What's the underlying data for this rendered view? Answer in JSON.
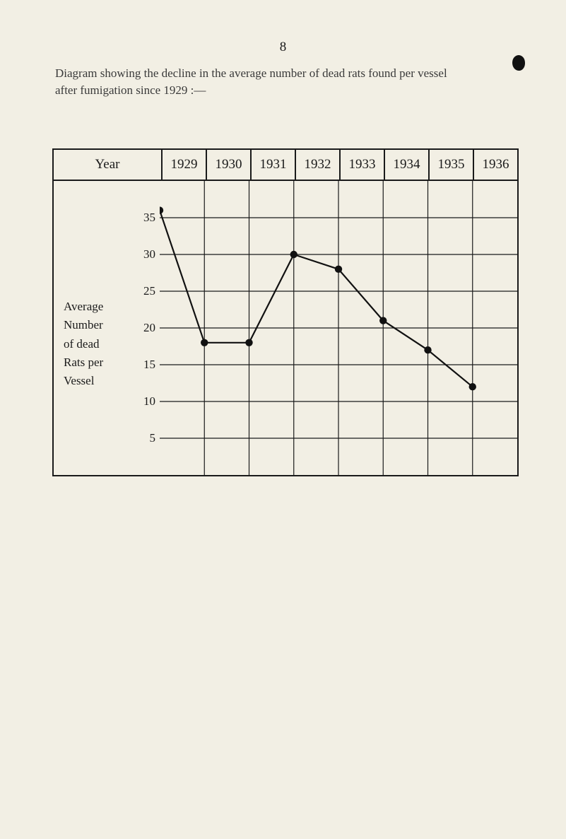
{
  "page_number": "8",
  "caption_line1": "Diagram showing the decline in the average number of dead rats found per vessel",
  "caption_line2": "after fumigation since 1929 :—",
  "header_first": "Year",
  "chart": {
    "type": "line",
    "years": [
      "1929",
      "1930",
      "1931",
      "1932",
      "1933",
      "1934",
      "1935",
      "1936"
    ],
    "values": [
      36,
      18,
      18,
      30,
      28,
      21,
      17,
      12
    ],
    "yticks": [
      35,
      30,
      25,
      20,
      15,
      10,
      5
    ],
    "ymin": 0,
    "ymax": 40,
    "ylabel_lines": [
      "Average",
      "Number",
      "of dead",
      "Rats per",
      "Vessel"
    ],
    "line_color": "#111111",
    "line_width": 2.2,
    "marker_radius": 5.2,
    "grid_color": "#1a1a1a",
    "grid_width": 1.2,
    "background": "#f2efe4",
    "label_fontsize": 17
  }
}
